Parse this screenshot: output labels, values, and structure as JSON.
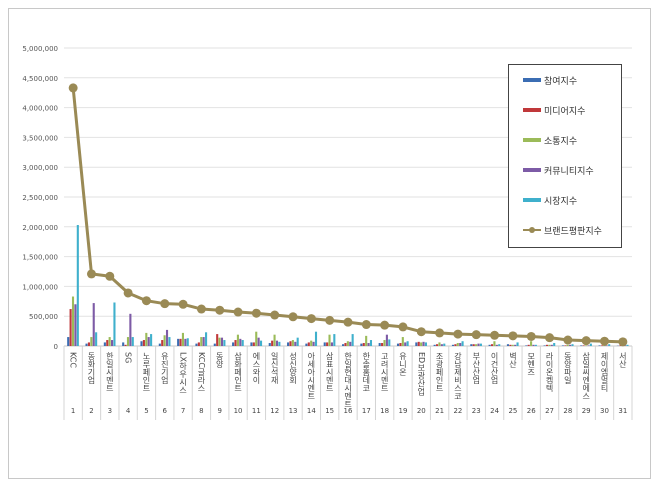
{
  "chart_data": {
    "type": "bar+line",
    "title": "",
    "xlabel": "",
    "ylabel": "",
    "ylim": [
      0,
      5000000
    ],
    "yticks": [
      "0",
      "500,000",
      "1,000,000",
      "1,500,000",
      "2,000,000",
      "2,500,000",
      "3,000,000",
      "3,500,000",
      "4,000,000",
      "4,500,000",
      "5,000,000"
    ],
    "grid": true,
    "legend_position": "top-right",
    "categories": [
      "KCC",
      "동화기업",
      "한일시멘트",
      "SG",
      "노루페인트",
      "유진기업",
      "LX하우시스",
      "KCC글라스",
      "동양",
      "삼화페인트",
      "에스와이",
      "일신석재",
      "성신양회",
      "아세아시멘트",
      "삼표시멘트",
      "한일현대시멘트",
      "한솔홈데코",
      "고려시멘트",
      "유니온",
      "ED보광산업",
      "조광페인트",
      "강남제비스코",
      "부산산업",
      "이건산업",
      "벽산",
      "모헨즈",
      "라이온켐텍",
      "동양파일",
      "삼일씨엔에스",
      "제이엠멀티",
      "서산"
    ],
    "ranks": [
      "1",
      "2",
      "3",
      "4",
      "5",
      "6",
      "7",
      "8",
      "9",
      "10",
      "11",
      "12",
      "13",
      "14",
      "15",
      "16",
      "17",
      "18",
      "19",
      "20",
      "21",
      "22",
      "23",
      "24",
      "25",
      "26",
      "27",
      "28",
      "29",
      "30",
      "31"
    ],
    "series": [
      {
        "name": "참여지수",
        "type": "bar",
        "color": "#3b6db3",
        "values": [
          150000,
          40000,
          60000,
          60000,
          80000,
          40000,
          120000,
          40000,
          40000,
          60000,
          60000,
          50000,
          60000,
          40000,
          60000,
          30000,
          40000,
          50000,
          40000,
          60000,
          20000,
          20000,
          30000,
          20000,
          30000,
          10000,
          10000,
          10000,
          10000,
          10000,
          5000
        ]
      },
      {
        "name": "미디어지수",
        "type": "bar",
        "color": "#c0383a",
        "values": [
          620000,
          60000,
          100000,
          20000,
          100000,
          100000,
          120000,
          60000,
          200000,
          100000,
          60000,
          90000,
          80000,
          60000,
          60000,
          50000,
          50000,
          50000,
          50000,
          70000,
          30000,
          30000,
          30000,
          30000,
          20000,
          20000,
          20000,
          10000,
          10000,
          10000,
          10000
        ]
      },
      {
        "name": "소통지수",
        "type": "bar",
        "color": "#9bbb59",
        "values": [
          830000,
          150000,
          150000,
          150000,
          220000,
          180000,
          220000,
          150000,
          140000,
          190000,
          240000,
          190000,
          100000,
          90000,
          190000,
          80000,
          170000,
          100000,
          150000,
          60000,
          60000,
          50000,
          30000,
          80000,
          20000,
          80000,
          20000,
          20000,
          10000,
          10000,
          10000
        ]
      },
      {
        "name": "커뮤니티지수",
        "type": "bar",
        "color": "#7d5ba6",
        "values": [
          700000,
          720000,
          100000,
          540000,
          150000,
          270000,
          120000,
          150000,
          140000,
          120000,
          140000,
          90000,
          70000,
          70000,
          60000,
          70000,
          50000,
          190000,
          60000,
          70000,
          30000,
          50000,
          40000,
          20000,
          20000,
          20000,
          20000,
          20000,
          10000,
          10000,
          10000
        ]
      },
      {
        "name": "시장지수",
        "type": "bar",
        "color": "#3fb0cc",
        "values": [
          2030000,
          230000,
          730000,
          150000,
          200000,
          150000,
          130000,
          230000,
          100000,
          100000,
          90000,
          70000,
          140000,
          240000,
          200000,
          200000,
          100000,
          110000,
          80000,
          60000,
          40000,
          80000,
          40000,
          30000,
          60000,
          20000,
          50000,
          30000,
          40000,
          30000,
          20000
        ]
      },
      {
        "name": "브랜드평판지수",
        "type": "line",
        "color": "#9a8a55",
        "values": [
          4330000,
          1210000,
          1170000,
          890000,
          760000,
          710000,
          700000,
          620000,
          600000,
          570000,
          550000,
          520000,
          490000,
          460000,
          430000,
          400000,
          360000,
          350000,
          320000,
          240000,
          220000,
          200000,
          190000,
          180000,
          170000,
          160000,
          140000,
          100000,
          90000,
          80000,
          70000
        ]
      }
    ]
  }
}
